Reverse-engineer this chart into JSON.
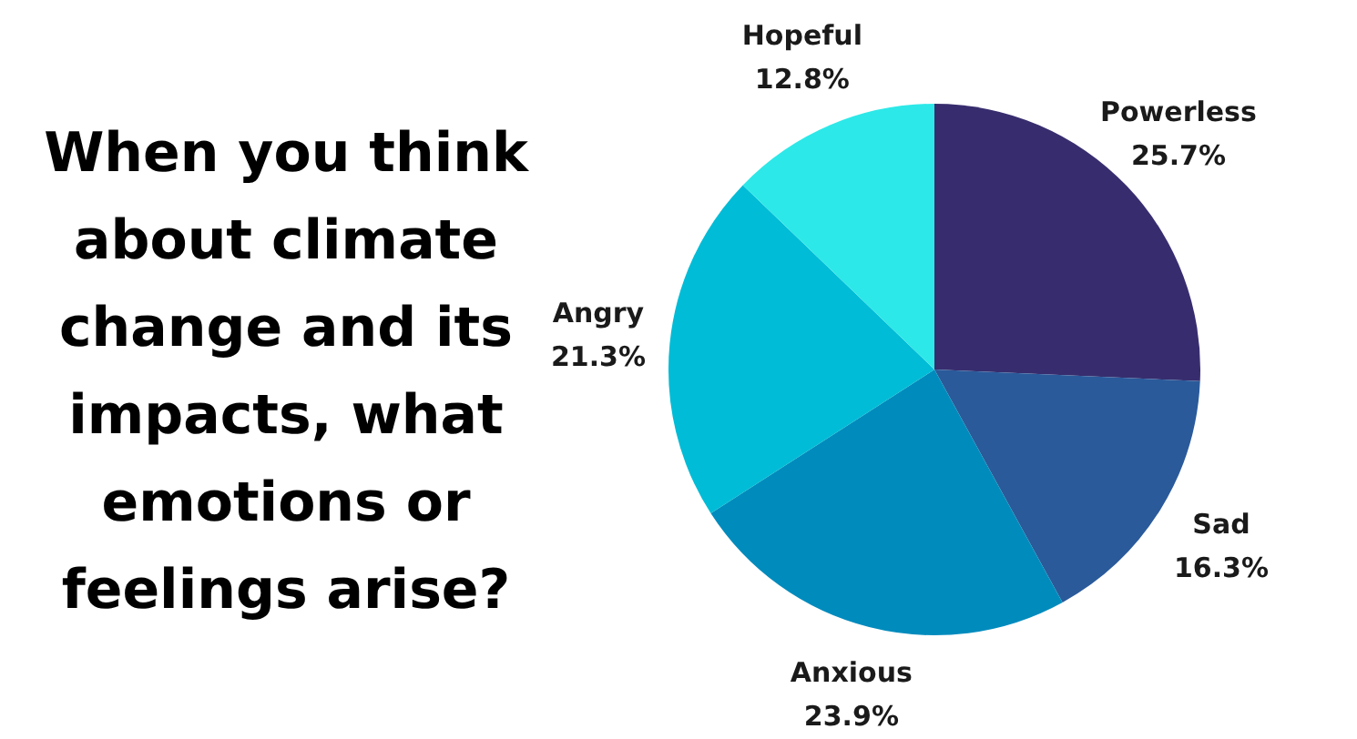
{
  "chart_data": {
    "type": "pie",
    "title": "When you think about climate change and its impacts, what emotions or feelings arise?",
    "categories": [
      "Powerless",
      "Sad",
      "Anxious",
      "Angry",
      "Hopeful"
    ],
    "values": [
      25.7,
      16.3,
      23.9,
      21.3,
      12.8
    ],
    "value_labels": [
      "25.7%",
      "16.3%",
      "23.9%",
      "21.3%",
      "12.8%"
    ],
    "colors": [
      "#372d6e",
      "#2a5a9a",
      "#008bbd",
      "#00bcd6",
      "#2de8e8"
    ]
  }
}
